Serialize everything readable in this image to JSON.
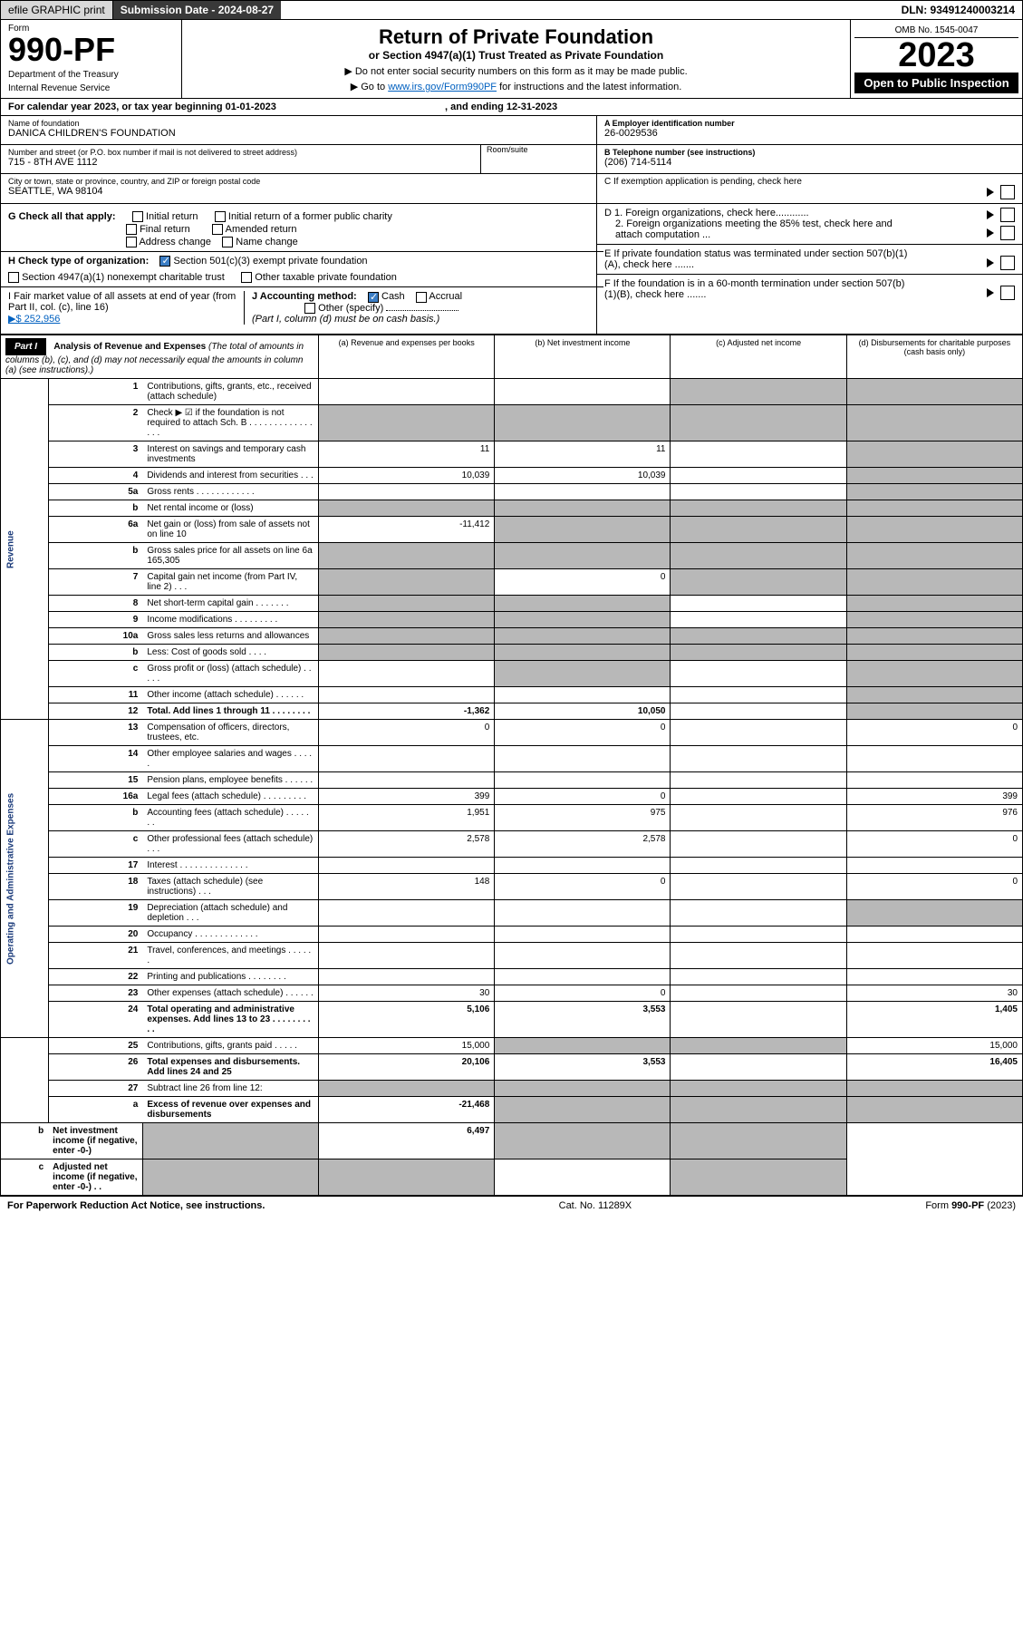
{
  "topbar": {
    "efile": "efile GRAPHIC print",
    "submission": "Submission Date - 2024-08-27",
    "dln": "DLN: 93491240003214"
  },
  "header": {
    "form_label": "Form",
    "form_num": "990-PF",
    "dept1": "Department of the Treasury",
    "dept2": "Internal Revenue Service",
    "title": "Return of Private Foundation",
    "subtitle": "or Section 4947(a)(1) Trust Treated as Private Foundation",
    "instr1": "▶ Do not enter social security numbers on this form as it may be made public.",
    "instr2_pre": "▶ Go to ",
    "instr2_link": "www.irs.gov/Form990PF",
    "instr2_post": " for instructions and the latest information.",
    "omb": "OMB No. 1545-0047",
    "year": "2023",
    "open_public": "Open to Public Inspection"
  },
  "calendar": {
    "text": "For calendar year 2023, or tax year beginning 01-01-2023",
    "ending": ", and ending 12-31-2023"
  },
  "info": {
    "name_lbl": "Name of foundation",
    "name": "DANICA CHILDREN'S FOUNDATION",
    "addr_lbl": "Number and street (or P.O. box number if mail is not delivered to street address)",
    "addr": "715 - 8TH AVE 1112",
    "room_lbl": "Room/suite",
    "city_lbl": "City or town, state or province, country, and ZIP or foreign postal code",
    "city": "SEATTLE, WA  98104",
    "ein_lbl": "A Employer identification number",
    "ein": "26-0029536",
    "tel_lbl": "B Telephone number (see instructions)",
    "tel": "(206) 714-5114",
    "c_lbl": "C If exemption application is pending, check here"
  },
  "checks": {
    "g_label": "G Check all that apply:",
    "initial": "Initial return",
    "initial_former": "Initial return of a former public charity",
    "final": "Final return",
    "amended": "Amended return",
    "addr_change": "Address change",
    "name_change": "Name change",
    "h_label": "H Check type of organization:",
    "h_501c3": "Section 501(c)(3) exempt private foundation",
    "h_4947": "Section 4947(a)(1) nonexempt charitable trust",
    "h_other": "Other taxable private foundation",
    "i_label": "I Fair market value of all assets at end of year (from Part II, col. (c), line 16)",
    "i_val": "▶$  252,956",
    "j_label": "J Accounting method:",
    "j_cash": "Cash",
    "j_accrual": "Accrual",
    "j_other": "Other (specify)",
    "j_note": "(Part I, column (d) must be on cash basis.)",
    "d1": "D 1. Foreign organizations, check here............",
    "d2": "2. Foreign organizations meeting the 85% test, check here and attach computation ...",
    "e": "E  If private foundation status was terminated under section 507(b)(1)(A), check here .......",
    "f": "F  If the foundation is in a 60-month termination under section 507(b)(1)(B), check here .......",
    "arrow": "▶"
  },
  "part1": {
    "label": "Part I",
    "title": "Analysis of Revenue and Expenses",
    "note": "(The total of amounts in columns (b), (c), and (d) may not necessarily equal the amounts in column (a) (see instructions).)",
    "col_a": "(a)   Revenue and expenses per books",
    "col_b": "(b)   Net investment income",
    "col_c": "(c)   Adjusted net income",
    "col_d": "(d)   Disbursements for charitable purposes (cash basis only)"
  },
  "side_labels": {
    "revenue": "Revenue",
    "expenses": "Operating and Administrative Expenses"
  },
  "rows": [
    {
      "n": "1",
      "d": "Contributions, gifts, grants, etc., received (attach schedule)",
      "a": "",
      "b": "",
      "c": "shaded",
      "dcol": "shaded"
    },
    {
      "n": "2",
      "d": "Check ▶ ☑ if the foundation is not required to attach Sch. B      .   .   .   .   .   .   .   .   .   .   .   .   .   .   .   .",
      "a": "shaded",
      "b": "shaded",
      "c": "shaded",
      "dcol": "shaded",
      "checked": true
    },
    {
      "n": "3",
      "d": "Interest on savings and temporary cash investments",
      "a": "11",
      "b": "11",
      "c": "",
      "dcol": "shaded"
    },
    {
      "n": "4",
      "d": "Dividends and interest from securities     .    .    .",
      "a": "10,039",
      "b": "10,039",
      "c": "",
      "dcol": "shaded"
    },
    {
      "n": "5a",
      "d": "Gross rents       .   .   .   .   .   .   .   .   .   .   .   .",
      "a": "",
      "b": "",
      "c": "",
      "dcol": "shaded"
    },
    {
      "n": "b",
      "d": "Net rental income or (loss)",
      "a": "shaded",
      "b": "shaded",
      "c": "shaded",
      "dcol": "shaded",
      "inline_box": true
    },
    {
      "n": "6a",
      "d": "Net gain or (loss) from sale of assets not on line 10",
      "a": "-11,412",
      "b": "shaded",
      "c": "shaded",
      "dcol": "shaded"
    },
    {
      "n": "b",
      "d": "Gross sales price for all assets on line 6a             165,305",
      "a": "shaded",
      "b": "shaded",
      "c": "shaded",
      "dcol": "shaded"
    },
    {
      "n": "7",
      "d": "Capital gain net income (from Part IV, line 2)    .    .    .",
      "a": "shaded",
      "b": "0",
      "c": "shaded",
      "dcol": "shaded"
    },
    {
      "n": "8",
      "d": "Net short-term capital gain   .   .   .   .   .   .   .",
      "a": "shaded",
      "b": "shaded",
      "c": "",
      "dcol": "shaded"
    },
    {
      "n": "9",
      "d": "Income modifications   .   .   .   .   .   .   .   .   .",
      "a": "shaded",
      "b": "shaded",
      "c": "",
      "dcol": "shaded"
    },
    {
      "n": "10a",
      "d": "Gross sales less returns and allowances",
      "a": "shaded",
      "b": "shaded",
      "c": "shaded",
      "dcol": "shaded",
      "inline_box": true
    },
    {
      "n": "b",
      "d": "Less: Cost of goods sold     .    .    .    .",
      "a": "shaded",
      "b": "shaded",
      "c": "shaded",
      "dcol": "shaded",
      "inline_box": true
    },
    {
      "n": "c",
      "d": "Gross profit or (loss) (attach schedule)     .    .    .    .    .",
      "a": "",
      "b": "shaded",
      "c": "",
      "dcol": "shaded"
    },
    {
      "n": "11",
      "d": "Other income (attach schedule)    .    .    .    .    .    .",
      "a": "",
      "b": "",
      "c": "",
      "dcol": "shaded"
    },
    {
      "n": "12",
      "d": "Total. Add lines 1 through 11    .    .    .    .    .    .    .    .",
      "a": "-1,362",
      "b": "10,050",
      "c": "",
      "dcol": "shaded",
      "bold": true
    },
    {
      "n": "13",
      "d": "Compensation of officers, directors, trustees, etc.",
      "a": "0",
      "b": "0",
      "c": "",
      "dcol": "0",
      "section": "expenses"
    },
    {
      "n": "14",
      "d": "Other employee salaries and wages    .    .    .    .    .",
      "a": "",
      "b": "",
      "c": "",
      "dcol": ""
    },
    {
      "n": "15",
      "d": "Pension plans, employee benefits   .   .   .   .   .   .",
      "a": "",
      "b": "",
      "c": "",
      "dcol": ""
    },
    {
      "n": "16a",
      "d": "Legal fees (attach schedule)  .   .   .   .   .   .   .   .   .",
      "a": "399",
      "b": "0",
      "c": "",
      "dcol": "399"
    },
    {
      "n": "b",
      "d": "Accounting fees (attach schedule)  .   .   .   .   .   .   .",
      "a": "1,951",
      "b": "975",
      "c": "",
      "dcol": "976"
    },
    {
      "n": "c",
      "d": "Other professional fees (attach schedule)     .    .    .",
      "a": "2,578",
      "b": "2,578",
      "c": "",
      "dcol": "0"
    },
    {
      "n": "17",
      "d": "Interest   .   .   .   .   .   .   .   .   .   .   .   .   .   .",
      "a": "",
      "b": "",
      "c": "",
      "dcol": ""
    },
    {
      "n": "18",
      "d": "Taxes (attach schedule) (see instructions)     .    .    .",
      "a": "148",
      "b": "0",
      "c": "",
      "dcol": "0"
    },
    {
      "n": "19",
      "d": "Depreciation (attach schedule) and depletion    .    .    .",
      "a": "",
      "b": "",
      "c": "",
      "dcol": "shaded"
    },
    {
      "n": "20",
      "d": "Occupancy  .   .   .   .   .   .   .   .   .   .   .   .   .",
      "a": "",
      "b": "",
      "c": "",
      "dcol": ""
    },
    {
      "n": "21",
      "d": "Travel, conferences, and meetings  .   .   .   .   .   .",
      "a": "",
      "b": "",
      "c": "",
      "dcol": ""
    },
    {
      "n": "22",
      "d": "Printing and publications   .   .   .   .   .   .   .   .",
      "a": "",
      "b": "",
      "c": "",
      "dcol": ""
    },
    {
      "n": "23",
      "d": "Other expenses (attach schedule)  .   .   .   .   .   .",
      "a": "30",
      "b": "0",
      "c": "",
      "dcol": "30"
    },
    {
      "n": "24",
      "d": "Total operating and administrative expenses. Add lines 13 to 23    .   .   .   .   .   .   .   .   .   .",
      "a": "5,106",
      "b": "3,553",
      "c": "",
      "dcol": "1,405",
      "bold": true
    },
    {
      "n": "25",
      "d": "Contributions, gifts, grants paid     .    .    .    .    .",
      "a": "15,000",
      "b": "shaded",
      "c": "shaded",
      "dcol": "15,000"
    },
    {
      "n": "26",
      "d": "Total expenses and disbursements. Add lines 24 and 25",
      "a": "20,106",
      "b": "3,553",
      "c": "",
      "dcol": "16,405",
      "bold": true
    },
    {
      "n": "27",
      "d": "Subtract line 26 from line 12:",
      "a": "shaded",
      "b": "shaded",
      "c": "shaded",
      "dcol": "shaded",
      "section": "net"
    },
    {
      "n": "a",
      "d": "Excess of revenue over expenses and disbursements",
      "a": "-21,468",
      "b": "shaded",
      "c": "shaded",
      "dcol": "shaded",
      "bold": true
    },
    {
      "n": "b",
      "d": "Net investment income (if negative, enter -0-)",
      "a": "shaded",
      "b": "6,497",
      "c": "shaded",
      "dcol": "shaded",
      "bold": true
    },
    {
      "n": "c",
      "d": "Adjusted net income (if negative, enter -0-)    .    .",
      "a": "shaded",
      "b": "shaded",
      "c": "",
      "dcol": "shaded",
      "bold": true
    }
  ],
  "footer": {
    "left": "For Paperwork Reduction Act Notice, see instructions.",
    "center": "Cat. No. 11289X",
    "right": "Form 990-PF (2023)"
  }
}
